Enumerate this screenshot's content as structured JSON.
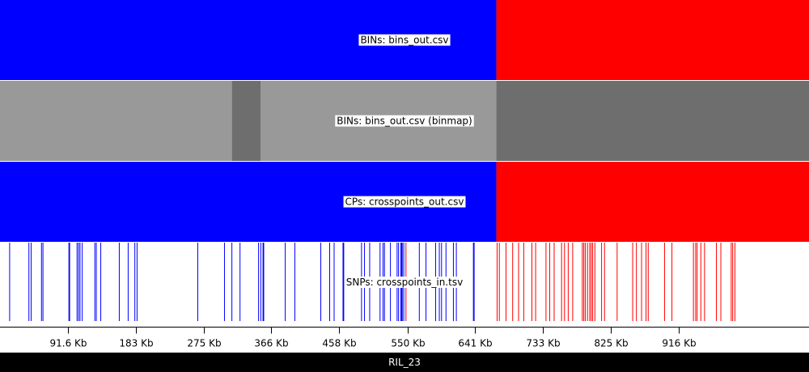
{
  "footer": {
    "sample_name": "RIL_23"
  },
  "colors": {
    "blue": "#0000ff",
    "red": "#ff0000",
    "gray_light": "#999999",
    "gray_dark": "#6e6e6e",
    "footer_bg": "#000000"
  },
  "chart_data": {
    "type": "genome-track",
    "x_unit": "Kb",
    "x_range": [
      0,
      1092
    ],
    "tick_values": [
      91.6,
      183,
      275,
      366,
      458,
      550,
      641,
      733,
      825,
      916
    ],
    "tick_labels": [
      "91.6 Kb",
      "183 Kb",
      "275 Kb",
      "366 Kb",
      "458 Kb",
      "550 Kb",
      "641 Kb",
      "733 Kb",
      "825 Kb",
      "916 Kb"
    ],
    "tracks": [
      {
        "label": "BINs: bins_out.csv",
        "kind": "segments",
        "segments": [
          {
            "start": 0,
            "end": 670,
            "color": "blue"
          },
          {
            "start": 670,
            "end": 1092,
            "color": "red"
          }
        ]
      },
      {
        "label": "BINs: bins_out.csv (binmap)",
        "kind": "segments",
        "segments": [
          {
            "start": 0,
            "end": 313,
            "color": "gray_light"
          },
          {
            "start": 313,
            "end": 352,
            "color": "gray_dark"
          },
          {
            "start": 352,
            "end": 670,
            "color": "gray_light"
          },
          {
            "start": 670,
            "end": 1092,
            "color": "gray_dark"
          }
        ]
      },
      {
        "label": "CPs: crosspoints_out.csv",
        "kind": "segments",
        "segments": [
          {
            "start": 0,
            "end": 670,
            "color": "blue"
          },
          {
            "start": 670,
            "end": 1092,
            "color": "red"
          }
        ]
      },
      {
        "label": "SNPs: crosspoints_in.tsv",
        "kind": "snps",
        "blue_positions": [
          13,
          39,
          42,
          56,
          58,
          93,
          94,
          104,
          106,
          108,
          111,
          128,
          130,
          136,
          161,
          173,
          182,
          185,
          267,
          303,
          313,
          324,
          349,
          352,
          355,
          356,
          385,
          398,
          433,
          445,
          451,
          463,
          464,
          488,
          492,
          499,
          513,
          517,
          519,
          527,
          536,
          538,
          541,
          542,
          543,
          545,
          566,
          575,
          588,
          593,
          596,
          602,
          612,
          616,
          639,
          640
        ],
        "red_positions": [
          548,
          671,
          674,
          683,
          692,
          700,
          707,
          718,
          723,
          737,
          742,
          748,
          758,
          762,
          767,
          773,
          786,
          788,
          790,
          793,
          796,
          798,
          800,
          803,
          812,
          816,
          833,
          854,
          859,
          866,
          872,
          875,
          897,
          907,
          936,
          939,
          941,
          946,
          951,
          967,
          973,
          987,
          989,
          992
        ]
      }
    ]
  }
}
